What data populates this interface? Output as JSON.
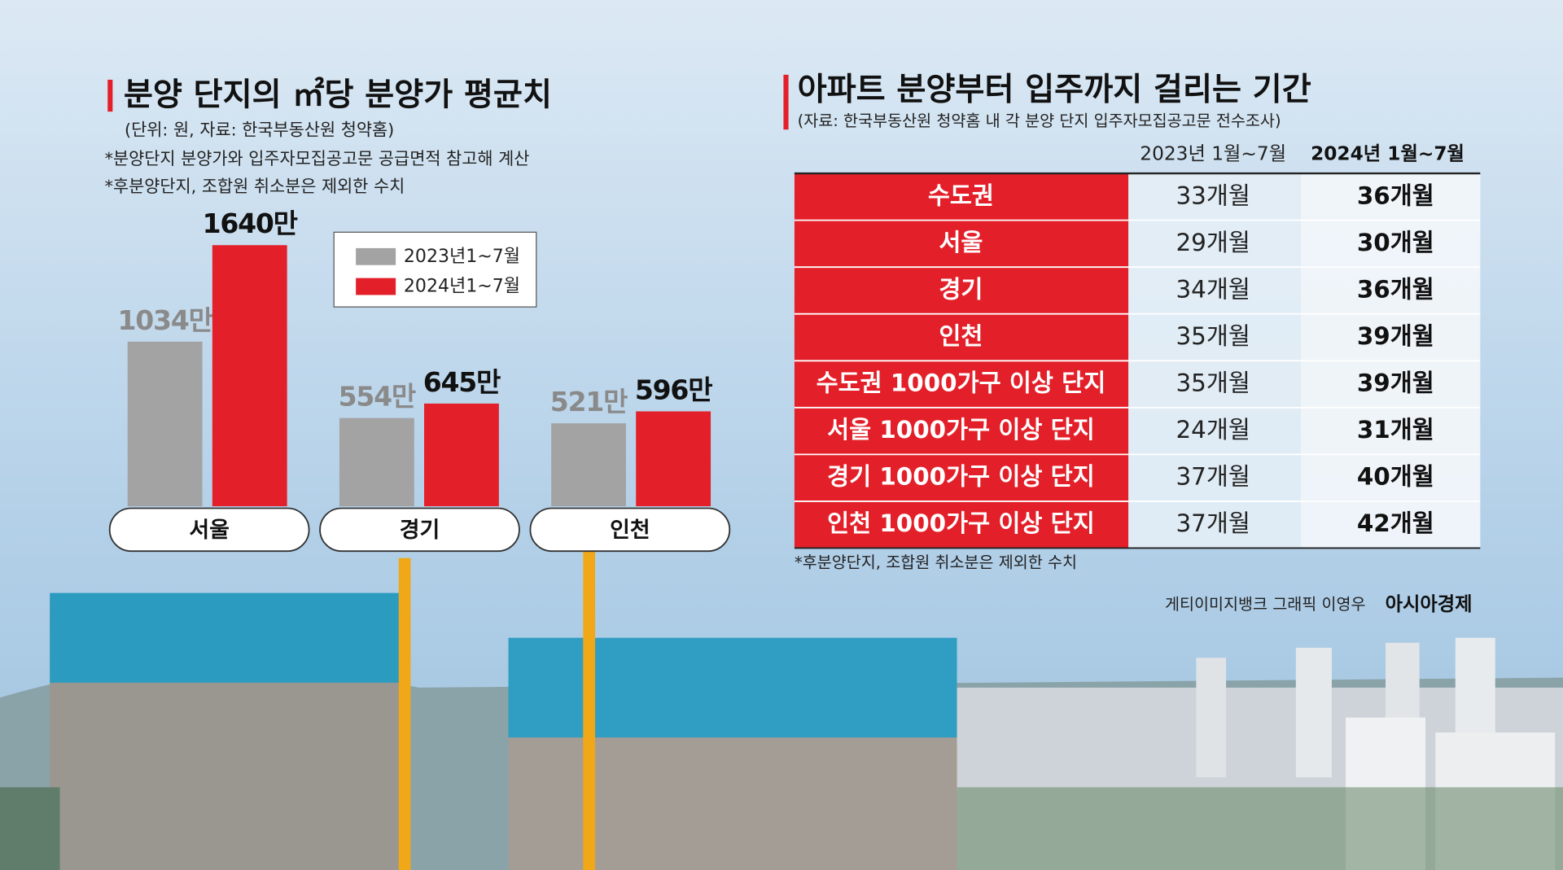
{
  "chart_data": {
    "type": "bar",
    "title": "분양 단지의 ㎡당 분양가 평균치",
    "subtitle": "(단위: 원, 자료: 한국부동산원 청약홈)",
    "notes": [
      "*분양단지 분양가와 입주자모집공고문 공급면적 참고해 계산",
      "*후분양단지, 조합원 취소분은 제외한 수치"
    ],
    "categories": [
      "서울",
      "경기",
      "인천"
    ],
    "series": [
      {
        "name": "2023년1~7월",
        "color": "#a3a3a3",
        "values": [
          1034,
          554,
          521
        ],
        "value_labels": [
          "1034만",
          "554만",
          "521만"
        ]
      },
      {
        "name": "2024년1~7월",
        "color": "#e3202a",
        "values": [
          1640,
          645,
          596
        ],
        "value_labels": [
          "1640만",
          "645만",
          "596만"
        ]
      }
    ]
  },
  "table": {
    "title": "아파트 분양부터 입주까지 걸리는 기간",
    "source": "(자료: 한국부동산원 청약홈 내 각 분양 단지 입주자모집공고문 전수조사)",
    "columns": [
      "2023년 1월~7월",
      "2024년 1월~7월"
    ],
    "rows": [
      [
        "수도권",
        "33개월",
        "36개월"
      ],
      [
        "서울",
        "29개월",
        "30개월"
      ],
      [
        "경기",
        "34개월",
        "36개월"
      ],
      [
        "인천",
        "35개월",
        "39개월"
      ],
      [
        "수도권 1000가구 이상 단지",
        "35개월",
        "39개월"
      ],
      [
        "서울 1000가구 이상 단지",
        "24개월",
        "31개월"
      ],
      [
        "경기 1000가구 이상 단지",
        "37개월",
        "40개월"
      ],
      [
        "인천 1000가구 이상 단지",
        "37개월",
        "42개월"
      ]
    ],
    "note": "*후분양단지, 조합원 취소분은 제외한 수치"
  },
  "credits": {
    "text": "게티이미지뱅크  그래픽 이영우",
    "brand": "아시아경제"
  }
}
